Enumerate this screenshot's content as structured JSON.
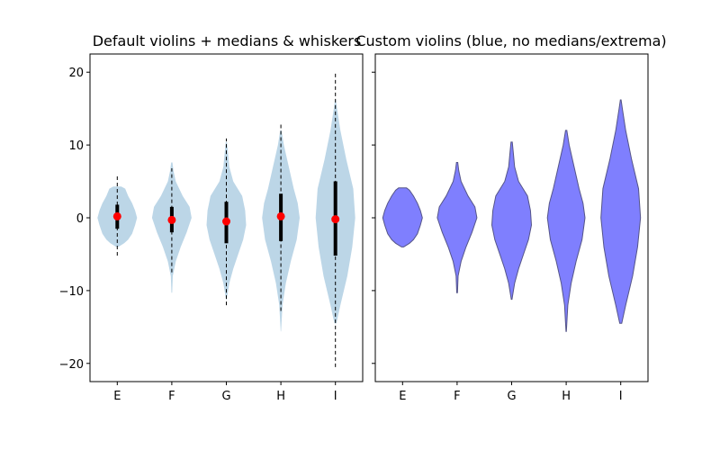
{
  "chart_data": [
    {
      "type": "violin",
      "title": "Default violins + medians & whiskers",
      "categories": [
        "E",
        "F",
        "G",
        "H",
        "I"
      ],
      "ylim": [
        -22.5,
        22.5
      ],
      "yticks": [
        -20,
        -10,
        0,
        10,
        20
      ],
      "ytick_labels": [
        "−20",
        "−10",
        "0",
        "10",
        "20"
      ],
      "show_yticklabels": true,
      "violin_color": "#bcd6e7",
      "median_color": "#ff0000",
      "whisker_color": "#000000",
      "violins": [
        {
          "name": "E",
          "range": [
            -4,
            4.3
          ],
          "density": [
            [
              -4,
              0.05
            ],
            [
              -3.5,
              0.35
            ],
            [
              -3,
              0.55
            ],
            [
              -2.2,
              0.75
            ],
            [
              -1,
              0.9
            ],
            [
              0,
              1.0
            ],
            [
              1,
              0.9
            ],
            [
              2,
              0.75
            ],
            [
              3,
              0.55
            ],
            [
              4,
              0.4
            ],
            [
              4.3,
              0.2
            ]
          ],
          "median": 0.2,
          "q1": -1.5,
          "q3": 1.8,
          "whisker_low": -5.2,
          "whisker_high": 6.0
        },
        {
          "name": "F",
          "range": [
            -10.3,
            7.6
          ],
          "density": [
            [
              -10.3,
              0.02
            ],
            [
              -8,
              0.05
            ],
            [
              -6,
              0.2
            ],
            [
              -4,
              0.45
            ],
            [
              -2,
              0.75
            ],
            [
              0,
              1.0
            ],
            [
              1.5,
              0.9
            ],
            [
              3,
              0.55
            ],
            [
              5,
              0.2
            ],
            [
              6.5,
              0.08
            ],
            [
              7.6,
              0.03
            ]
          ],
          "median": -0.3,
          "q1": -2.0,
          "q3": 1.5,
          "whisker_low": -7.5,
          "whisker_high": 6.8
        },
        {
          "name": "G",
          "range": [
            -11.2,
            10.4
          ],
          "density": [
            [
              -11.2,
              0.02
            ],
            [
              -9,
              0.15
            ],
            [
              -7,
              0.35
            ],
            [
              -5,
              0.6
            ],
            [
              -3,
              0.85
            ],
            [
              -1,
              1.0
            ],
            [
              1,
              0.95
            ],
            [
              3,
              0.8
            ],
            [
              5,
              0.35
            ],
            [
              7,
              0.15
            ],
            [
              9,
              0.08
            ],
            [
              10.4,
              0.03
            ]
          ],
          "median": -0.5,
          "q1": -3.5,
          "q3": 2.2,
          "whisker_low": -12.0,
          "whisker_high": 10.9
        },
        {
          "name": "H",
          "range": [
            -15.6,
            12.0
          ],
          "density": [
            [
              -15.6,
              0.01
            ],
            [
              -12,
              0.08
            ],
            [
              -9,
              0.25
            ],
            [
              -6,
              0.5
            ],
            [
              -3,
              0.8
            ],
            [
              0,
              0.95
            ],
            [
              2,
              0.85
            ],
            [
              4,
              0.65
            ],
            [
              7,
              0.4
            ],
            [
              10,
              0.15
            ],
            [
              12,
              0.03
            ]
          ],
          "median": 0.2,
          "q1": -3.2,
          "q3": 3.3,
          "whisker_low": -12.8,
          "whisker_high": 12.8
        },
        {
          "name": "I",
          "range": [
            -14.5,
            16.2
          ],
          "density": [
            [
              -14.5,
              0.05
            ],
            [
              -12,
              0.25
            ],
            [
              -8,
              0.6
            ],
            [
              -4,
              0.85
            ],
            [
              0,
              1.0
            ],
            [
              4,
              0.9
            ],
            [
              8,
              0.55
            ],
            [
              12,
              0.25
            ],
            [
              15,
              0.08
            ],
            [
              16.2,
              0.02
            ]
          ],
          "median": -0.2,
          "q1": -5.2,
          "q3": 5.0,
          "whisker_low": -20.5,
          "whisker_high": 20.0
        }
      ]
    },
    {
      "type": "violin",
      "title": "Custom violins (blue, no medians/extrema)",
      "categories": [
        "E",
        "F",
        "G",
        "H",
        "I"
      ],
      "ylim": [
        -22.5,
        22.5
      ],
      "yticks": [
        -20,
        -10,
        0,
        10,
        20
      ],
      "show_yticklabels": false,
      "violin_color": "#7f7ffe",
      "edge_color": "#555588",
      "violins": [
        {
          "name": "E",
          "range": [
            -4,
            4.1
          ],
          "density": [
            [
              -4,
              0.05
            ],
            [
              -3.5,
              0.35
            ],
            [
              -3,
              0.55
            ],
            [
              -2.2,
              0.75
            ],
            [
              -1,
              0.9
            ],
            [
              0,
              1.0
            ],
            [
              1,
              0.9
            ],
            [
              2,
              0.75
            ],
            [
              3,
              0.55
            ],
            [
              3.8,
              0.35
            ],
            [
              4.1,
              0.2
            ]
          ]
        },
        {
          "name": "F",
          "range": [
            -10.3,
            7.6
          ],
          "density": [
            [
              -10.3,
              0.02
            ],
            [
              -8,
              0.05
            ],
            [
              -6,
              0.2
            ],
            [
              -4,
              0.45
            ],
            [
              -2,
              0.75
            ],
            [
              0,
              1.0
            ],
            [
              1.5,
              0.9
            ],
            [
              3,
              0.55
            ],
            [
              5,
              0.2
            ],
            [
              6.5,
              0.08
            ],
            [
              7.6,
              0.03
            ]
          ]
        },
        {
          "name": "G",
          "range": [
            -11.2,
            10.4
          ],
          "density": [
            [
              -11.2,
              0.02
            ],
            [
              -9,
              0.15
            ],
            [
              -7,
              0.35
            ],
            [
              -5,
              0.6
            ],
            [
              -3,
              0.85
            ],
            [
              -1,
              1.0
            ],
            [
              1,
              0.95
            ],
            [
              3,
              0.8
            ],
            [
              5,
              0.35
            ],
            [
              7,
              0.15
            ],
            [
              9,
              0.08
            ],
            [
              10.4,
              0.03
            ]
          ]
        },
        {
          "name": "H",
          "range": [
            -15.6,
            12.0
          ],
          "density": [
            [
              -15.6,
              0.01
            ],
            [
              -12,
              0.08
            ],
            [
              -9,
              0.25
            ],
            [
              -6,
              0.5
            ],
            [
              -3,
              0.8
            ],
            [
              0,
              0.95
            ],
            [
              2,
              0.85
            ],
            [
              4,
              0.65
            ],
            [
              7,
              0.4
            ],
            [
              10,
              0.15
            ],
            [
              12,
              0.03
            ]
          ]
        },
        {
          "name": "I",
          "range": [
            -14.5,
            16.2
          ],
          "density": [
            [
              -14.5,
              0.05
            ],
            [
              -12,
              0.25
            ],
            [
              -8,
              0.6
            ],
            [
              -4,
              0.85
            ],
            [
              0,
              1.0
            ],
            [
              4,
              0.9
            ],
            [
              8,
              0.55
            ],
            [
              12,
              0.25
            ],
            [
              15,
              0.08
            ],
            [
              16.2,
              0.02
            ]
          ]
        }
      ]
    }
  ]
}
